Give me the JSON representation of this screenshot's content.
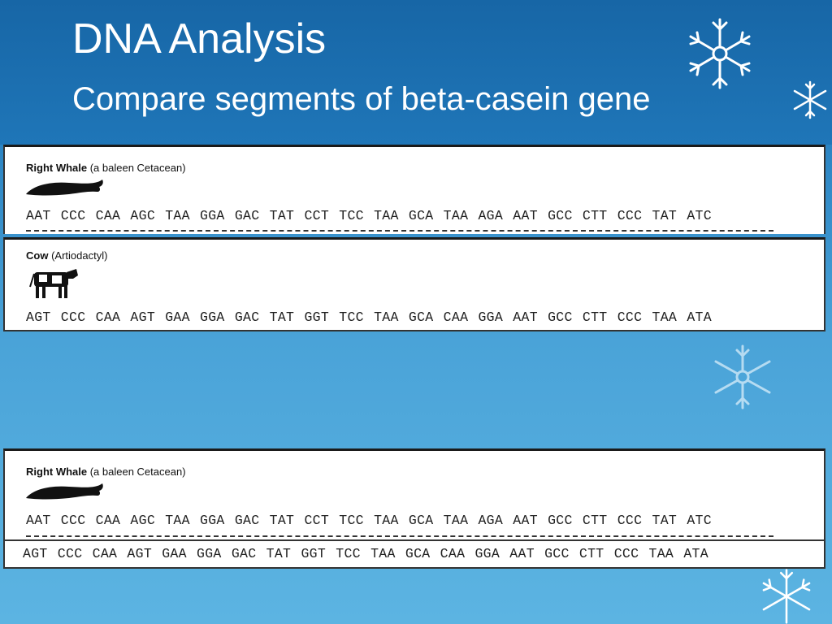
{
  "slide": {
    "title": "DNA Analysis",
    "subtitle": "Compare segments of beta-casein gene"
  },
  "whale": {
    "name": "Right Whale",
    "desc": " (a baleen Cetacean)",
    "sequence": "AAT CCC CAA AGC TAA GGA GAC TAT CCT TCC TAA GCA TAA AGA AAT GCC CTT CCC TAT ATC"
  },
  "cow": {
    "name": "Cow",
    "desc": " (Artiodactyl)",
    "sequence": "AGT CCC CAA AGT GAA GGA GAC TAT GGT TCC TAA GCA CAA GGA AAT GCC CTT CCC TAA ATA"
  },
  "colors": {
    "header": "#1766a6",
    "background": "#4aa3d8",
    "text": "#ffffff"
  },
  "icons": [
    "snowflake-icon",
    "whale-icon",
    "cow-icon"
  ]
}
